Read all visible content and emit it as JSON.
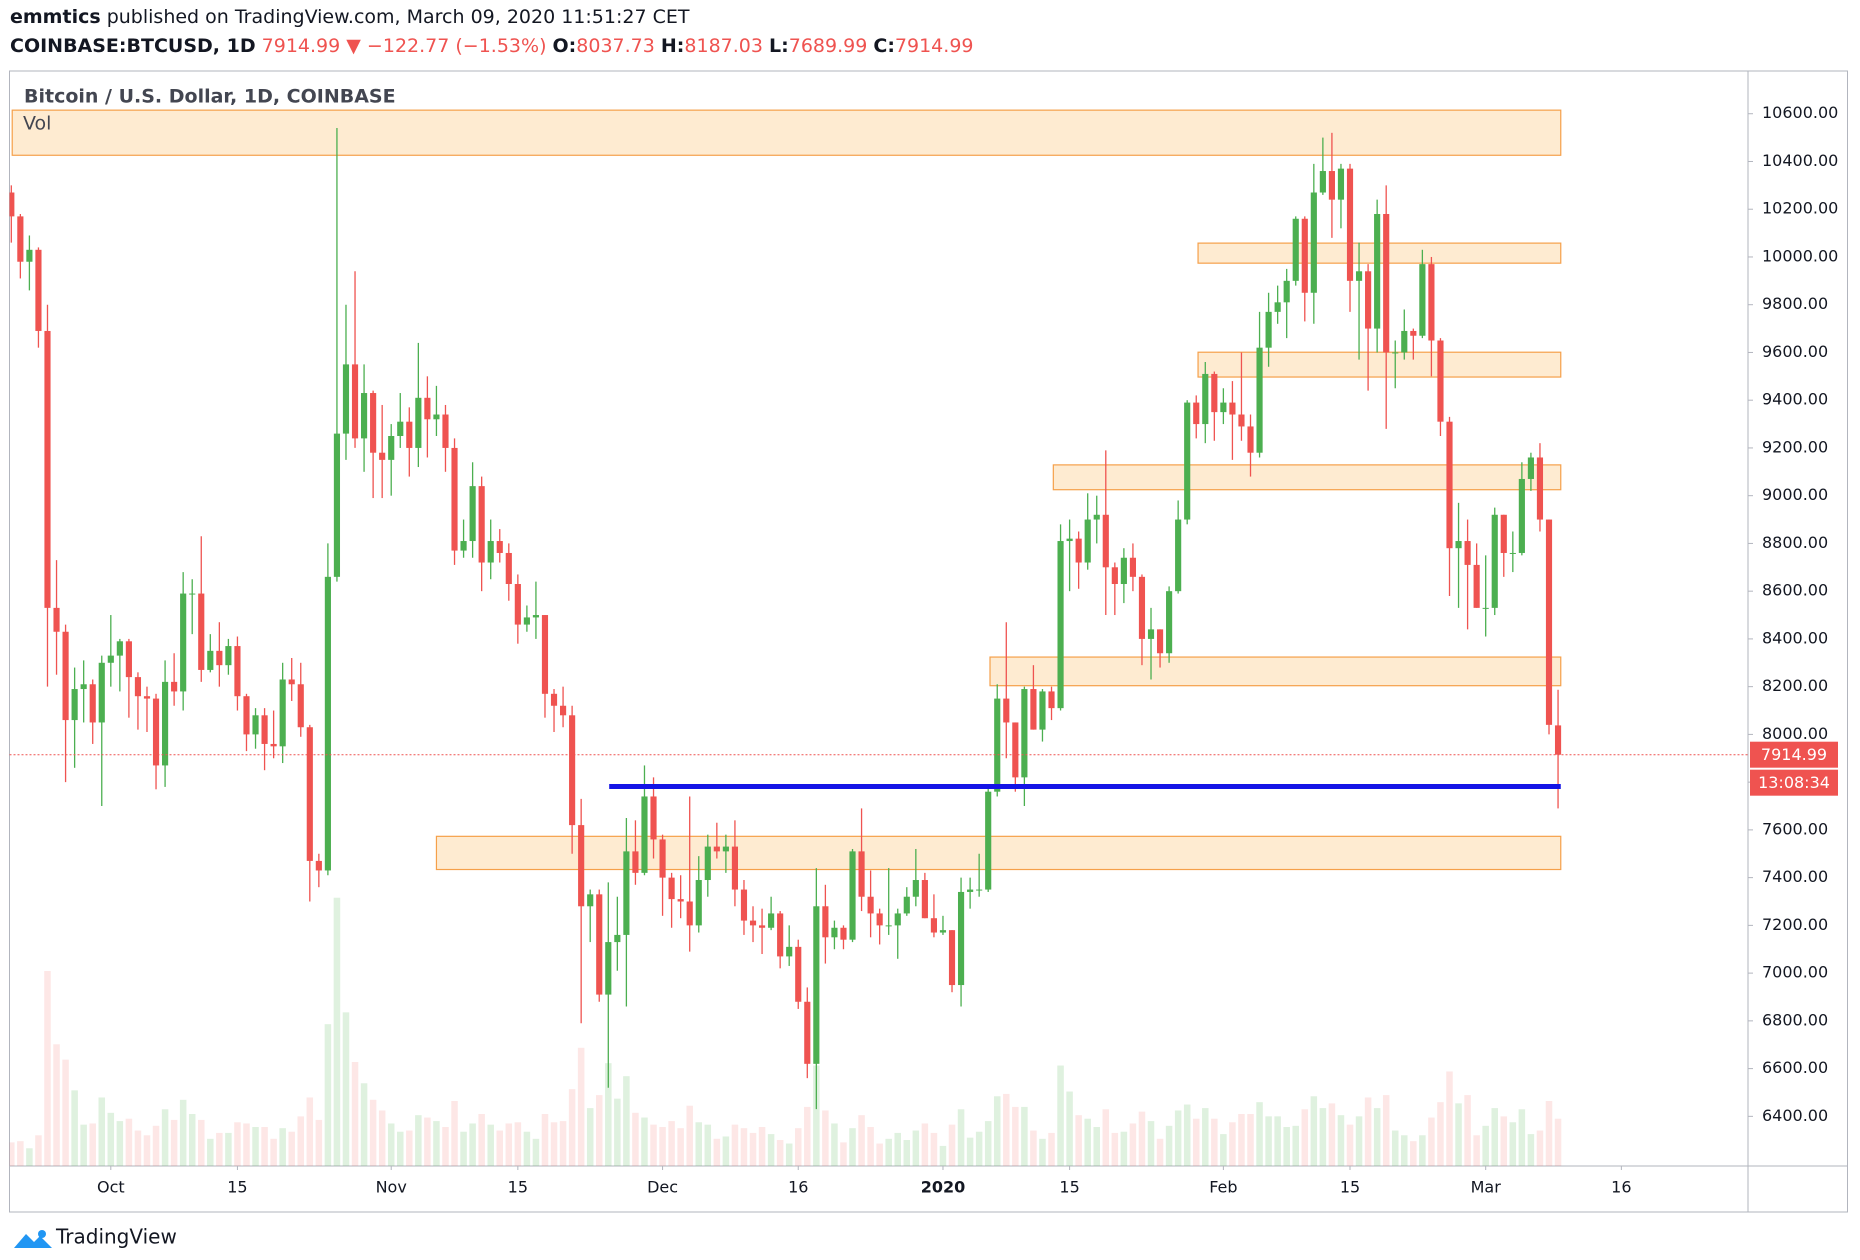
{
  "header": {
    "author": "emmtics",
    "published": "published on TradingView.com, March 09, 2020 11:51:27 CET",
    "symbol": "COINBASE:BTCUSD, 1D",
    "change": "▼ −122.77 (−1.53%)",
    "o_label": "O:",
    "h_label": "H:",
    "l_label": "L:",
    "c_label": "C:"
  },
  "footer": {
    "brand": "TradingView"
  },
  "chart_data": {
    "type": "candlestick",
    "title": "Bitcoin / U.S. Dollar, 1D, COINBASE",
    "volume_label": "Vol",
    "countdown": "13:08:34",
    "up_color": "#4caf50",
    "down_color": "#ef5350",
    "grid": false,
    "open": [
      10270,
      10170,
      9980,
      10030,
      9690,
      8530,
      8430,
      8060,
      8190,
      8210,
      8050,
      8300,
      8330,
      8390,
      8240,
      8160,
      8150,
      7870,
      8220,
      8180,
      8590,
      8590,
      8270,
      8350,
      8290,
      8370,
      8160,
      8000,
      8080,
      7960,
      7950,
      8230,
      8210,
      8030,
      7470,
      7430,
      8660,
      9260,
      9550,
      9240,
      9430,
      9180,
      9150,
      9250,
      9310,
      9200,
      9410,
      9320,
      9340,
      9200,
      8770,
      8810,
      9040,
      8720,
      8810,
      8760,
      8630,
      8460,
      8490,
      8500,
      8170,
      8120,
      8080,
      7620,
      7280,
      7330,
      6910,
      7130,
      7160,
      7510,
      7420,
      7740,
      7560,
      7400,
      7310,
      7300,
      7200,
      7390,
      7530,
      7510,
      7530,
      7350,
      7220,
      7200,
      7190,
      7250,
      7070,
      7110,
      6880,
      6620,
      7280,
      7150,
      7190,
      7140,
      7510,
      7320,
      7250,
      7200,
      7200,
      7250,
      7320,
      7390,
      7230,
      7170,
      7180,
      6950,
      7340,
      7350,
      7350,
      7760,
      8150,
      8050,
      7820,
      8190,
      8020,
      8180,
      8110,
      8810,
      8820,
      8720,
      8900,
      8920,
      8700,
      8630,
      8740,
      8660,
      8400,
      8440,
      8340,
      8600,
      8900,
      9390,
      9300,
      9510,
      9350,
      9390,
      9340,
      9290,
      9180,
      9620,
      9770,
      9810,
      9900,
      10160,
      9850,
      10270,
      10360,
      10240,
      10370,
      9900,
      9940,
      9700,
      10180,
      9600,
      9600,
      9690,
      9670,
      9970,
      9650,
      9310,
      8780,
      8810,
      8710,
      8530,
      8530,
      8920,
      8760,
      8760,
      9070,
      9160,
      8900,
      8037.73
    ],
    "high": [
      10300,
      10180,
      10090,
      10040,
      9800,
      8730,
      8460,
      8280,
      8310,
      8230,
      8330,
      8500,
      8400,
      8400,
      8260,
      8200,
      8170,
      8310,
      8340,
      8680,
      8650,
      8830,
      8420,
      8470,
      8400,
      8410,
      8170,
      8110,
      8110,
      8100,
      8300,
      8320,
      8300,
      8040,
      7500,
      8800,
      10540,
      9800,
      9940,
      9550,
      9440,
      9380,
      9300,
      9430,
      9370,
      9640,
      9500,
      9460,
      9380,
      9240,
      8900,
      9140,
      9080,
      8900,
      8860,
      8800,
      8670,
      8540,
      8640,
      8500,
      8190,
      8200,
      8120,
      7730,
      7350,
      7350,
      7380,
      7320,
      7650,
      7640,
      7870,
      7820,
      7580,
      7420,
      7410,
      7740,
      7490,
      7580,
      7630,
      7580,
      7640,
      7390,
      7280,
      7270,
      7320,
      7260,
      7200,
      7140,
      6940,
      7440,
      7370,
      7220,
      7200,
      7520,
      7690,
      7430,
      7270,
      7440,
      7270,
      7360,
      7520,
      7420,
      7330,
      7240,
      7180,
      7400,
      7400,
      7500,
      7780,
      8210,
      8470,
      8050,
      8200,
      8290,
      8190,
      8200,
      8880,
      8900,
      8850,
      9010,
      9000,
      9190,
      8720,
      8780,
      8800,
      8670,
      8530,
      8440,
      8620,
      8980,
      9400,
      9420,
      9560,
      9520,
      9450,
      9480,
      9600,
      9340,
      9770,
      9850,
      9880,
      9950,
      10170,
      10170,
      10390,
      10500,
      10520,
      10390,
      10390,
      10060,
      9970,
      10240,
      10300,
      9650,
      9780,
      9700,
      10030,
      10000,
      9660,
      9330,
      8970,
      8900,
      8800,
      8750,
      8950,
      8920,
      8850,
      9140,
      9180,
      9220,
      8900,
      8187.03
    ],
    "low": [
      10060,
      9910,
      9860,
      9620,
      8200,
      8250,
      7800,
      7860,
      8050,
      7960,
      7700,
      8200,
      8180,
      8070,
      8020,
      8010,
      7770,
      7780,
      8120,
      8100,
      8420,
      8220,
      8260,
      8200,
      8250,
      8100,
      7930,
      7940,
      7850,
      7900,
      7880,
      8140,
      7990,
      7300,
      7360,
      7410,
      8640,
      9150,
      9200,
      9100,
      8990,
      8990,
      9000,
      9200,
      9080,
      9120,
      9160,
      9250,
      9100,
      8710,
      8740,
      8740,
      8600,
      8650,
      8720,
      8560,
      8380,
      8430,
      8400,
      8070,
      8010,
      8030,
      7500,
      6790,
      7130,
      6880,
      6520,
      7010,
      6860,
      7370,
      7410,
      7480,
      7240,
      7190,
      7230,
      7090,
      7170,
      7320,
      7480,
      7420,
      7280,
      7160,
      7130,
      7080,
      7180,
      7020,
      7030,
      6850,
      6560,
      6430,
      7040,
      7100,
      7100,
      7130,
      7260,
      7150,
      7120,
      7160,
      7060,
      7240,
      7280,
      7230,
      7150,
      7160,
      6920,
      6860,
      7270,
      7320,
      7340,
      7740,
      7900,
      7760,
      7700,
      8020,
      7970,
      8060,
      8100,
      8600,
      8610,
      8690,
      8800,
      8500,
      8500,
      8550,
      8600,
      8290,
      8230,
      8280,
      8300,
      8590,
      8880,
      9240,
      9220,
      9230,
      9300,
      9150,
      9230,
      9080,
      9160,
      9540,
      9720,
      9660,
      9880,
      9730,
      9720,
      10260,
      10080,
      10120,
      9770,
      9570,
      9440,
      9600,
      9280,
      9450,
      9570,
      9570,
      9660,
      9500,
      9250,
      8580,
      8530,
      8440,
      8530,
      8410,
      8500,
      8660,
      8680,
      8750,
      9020,
      8850,
      8000,
      7689.99
    ],
    "close": [
      10170,
      9980,
      10030,
      9690,
      8530,
      8430,
      8060,
      8190,
      8210,
      8050,
      8300,
      8330,
      8390,
      8240,
      8160,
      8150,
      7870,
      8220,
      8180,
      8590,
      8590,
      8270,
      8350,
      8290,
      8370,
      8160,
      8000,
      8080,
      7960,
      7950,
      8230,
      8210,
      8030,
      7470,
      7430,
      8660,
      9260,
      9550,
      9240,
      9430,
      9180,
      9150,
      9250,
      9310,
      9200,
      9410,
      9320,
      9340,
      9200,
      8770,
      8810,
      9040,
      8720,
      8810,
      8760,
      8630,
      8460,
      8490,
      8500,
      8170,
      8120,
      8080,
      7620,
      7280,
      7330,
      6910,
      7130,
      7160,
      7510,
      7420,
      7740,
      7560,
      7400,
      7310,
      7300,
      7200,
      7390,
      7530,
      7510,
      7530,
      7350,
      7220,
      7200,
      7190,
      7250,
      7070,
      7110,
      6880,
      6620,
      7280,
      7150,
      7190,
      7140,
      7510,
      7320,
      7250,
      7200,
      7200,
      7250,
      7320,
      7390,
      7230,
      7170,
      7180,
      6950,
      7340,
      7350,
      7350,
      7760,
      8150,
      8050,
      7820,
      8190,
      8020,
      8180,
      8110,
      8810,
      8820,
      8720,
      8900,
      8920,
      8700,
      8630,
      8740,
      8660,
      8400,
      8440,
      8340,
      8600,
      8900,
      9390,
      9300,
      9510,
      9350,
      9390,
      9340,
      9290,
      9180,
      9620,
      9770,
      9810,
      9900,
      10160,
      9850,
      10270,
      10360,
      10240,
      10370,
      9900,
      9940,
      9700,
      10180,
      9600,
      9600,
      9690,
      9670,
      9970,
      9650,
      9310,
      8780,
      8810,
      8710,
      8530,
      8530,
      8920,
      8760,
      8760,
      9070,
      9160,
      8900,
      8040,
      7914.99
    ],
    "volume": [
      2000,
      2100,
      1500,
      2600,
      16500,
      10300,
      9000,
      6400,
      3500,
      3600,
      5800,
      4500,
      3800,
      4000,
      3000,
      2600,
      3400,
      4800,
      3900,
      5600,
      4400,
      3900,
      2300,
      2800,
      2800,
      3700,
      3600,
      3300,
      3300,
      2300,
      3200,
      2900,
      4200,
      5800,
      3900,
      12000,
      22700,
      13000,
      8800,
      7000,
      5600,
      4700,
      3600,
      2900,
      3000,
      4300,
      4100,
      3800,
      3300,
      5500,
      2900,
      3600,
      4400,
      3500,
      3000,
      3600,
      3700,
      2900,
      2300,
      4400,
      3700,
      3800,
      6500,
      10000,
      4900,
      6000,
      8700,
      5700,
      7600,
      4500,
      4100,
      3500,
      3300,
      3800,
      3200,
      5100,
      3700,
      3500,
      2300,
      2500,
      3500,
      3200,
      2800,
      3300,
      2700,
      2200,
      1900,
      3200,
      5000,
      8500,
      4700,
      3600,
      2000,
      3200,
      4300,
      3300,
      1900,
      2300,
      2800,
      2200,
      3000,
      3600,
      2800,
      1700,
      3500,
      4800,
      2400,
      2900,
      3800,
      5900,
      6100,
      5000,
      5000,
      3000,
      2300,
      2800,
      8500,
      6300,
      4300,
      4000,
      3300,
      4800,
      2800,
      2900,
      3600,
      4600,
      3800,
      2300,
      3400,
      4700,
      5200,
      4000,
      4900,
      4000,
      2700,
      3700,
      4400,
      4400,
      5400,
      4200,
      4200,
      3300,
      3400,
      4800,
      5900,
      4900,
      5300,
      4300,
      3500,
      4200,
      5800,
      4900,
      6000,
      3000,
      2600,
      2100,
      2600,
      4100,
      5400,
      8000,
      5300,
      6000,
      2600,
      3400,
      4900,
      4200,
      3700,
      4800,
      2700,
      3000,
      5500,
      4000
    ],
    "xlim": [
      -0.2,
      192
    ],
    "ylim": [
      6192,
      10779
    ],
    "yticks": [
      {
        "value": 6400,
        "label": "6400.00"
      },
      {
        "value": 6600,
        "label": "6600.00"
      },
      {
        "value": 6800,
        "label": "6800.00"
      },
      {
        "value": 7000,
        "label": "7000.00"
      },
      {
        "value": 7200,
        "label": "7200.00"
      },
      {
        "value": 7400,
        "label": "7400.00"
      },
      {
        "value": 7600,
        "label": "7600.00"
      },
      {
        "value": 7800,
        "label": "7800.00"
      },
      {
        "value": 8000,
        "label": "8000.00"
      },
      {
        "value": 8200,
        "label": "8200.00"
      },
      {
        "value": 8400,
        "label": "8400.00"
      },
      {
        "value": 8600,
        "label": "8600.00"
      },
      {
        "value": 8800,
        "label": "8800.00"
      },
      {
        "value": 9000,
        "label": "9000.00"
      },
      {
        "value": 9200,
        "label": "9200.00"
      },
      {
        "value": 9400,
        "label": "9400.00"
      },
      {
        "value": 9600,
        "label": "9600.00"
      },
      {
        "value": 9800,
        "label": "9800.00"
      },
      {
        "value": 10000,
        "label": "10000.00"
      },
      {
        "value": 10200,
        "label": "10200.00"
      },
      {
        "value": 10400,
        "label": "10400.00"
      },
      {
        "value": 10600,
        "label": "10600.00"
      }
    ],
    "xticks": [
      {
        "value": 11,
        "label": "Oct"
      },
      {
        "value": 25,
        "label": "15"
      },
      {
        "value": 42,
        "label": "Nov"
      },
      {
        "value": 56,
        "label": "15"
      },
      {
        "value": 72,
        "label": "Dec"
      },
      {
        "value": 87,
        "label": "16"
      },
      {
        "value": 103,
        "label": "2020",
        "bold": true
      },
      {
        "value": 117,
        "label": "15"
      },
      {
        "value": 134,
        "label": "Feb"
      },
      {
        "value": 148,
        "label": "15"
      },
      {
        "value": 163,
        "label": "Mar"
      },
      {
        "value": 178,
        "label": "16"
      }
    ],
    "zones": [
      {
        "from": 0.1,
        "to": 171.3,
        "low": 10426,
        "high": 10615
      },
      {
        "from": 131.2,
        "to": 171.3,
        "low": 9974,
        "high": 10058
      },
      {
        "from": 131.2,
        "to": 171.3,
        "low": 9497,
        "high": 9601
      },
      {
        "from": 115.2,
        "to": 171.3,
        "low": 9025,
        "high": 9129
      },
      {
        "from": 108.2,
        "to": 171.3,
        "low": 8204,
        "high": 8324
      },
      {
        "from": 47,
        "to": 171.3,
        "low": 7434,
        "high": 7573
      }
    ],
    "zone_fill": "#fde2bd",
    "zone_stroke": "#f5a04a",
    "level": {
      "from": 66.1,
      "to": 171.3,
      "price": 7782,
      "color": "#1414e6"
    }
  }
}
